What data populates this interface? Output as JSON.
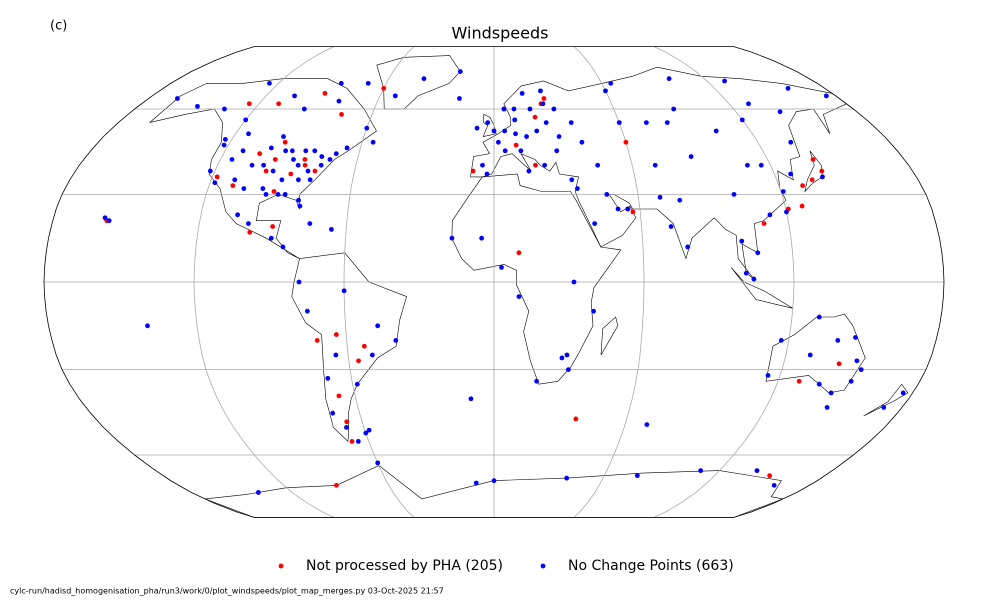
{
  "chart_data": {
    "type": "scatter",
    "panel": "(c)",
    "title": "Windspeeds",
    "footer": "cylc-run/hadisd_homogenisation_pha/run3/work/0/plot_windspeeds/plot_map_merges.py   03-Oct-2025 21:57",
    "series": [
      {
        "name": "Not processed by PHA (205)",
        "color": "#ff0000",
        "lon": [
          -98,
          -87,
          -82,
          -77,
          -92,
          -110,
          -118,
          -96,
          -104,
          -95,
          -83,
          -110,
          -75,
          -125,
          -90,
          -99,
          -90,
          -64,
          -56,
          -67,
          -67,
          -72,
          -53,
          -68,
          24,
          26,
          20,
          10,
          18,
          -9,
          5,
          140,
          141,
          135,
          130,
          127,
          110,
          121,
          55,
          57,
          60,
          10,
          129,
          143,
          37,
          -90,
          150,
          -158,
          -60
        ],
        "lat": [
          38,
          37,
          40,
          38,
          31,
          33,
          36,
          42,
          44,
          48,
          42,
          62,
          58,
          62,
          66,
          17,
          19,
          -18,
          -27,
          -39,
          -48,
          -20,
          -22,
          -55,
          62,
          64,
          57,
          47,
          40,
          38,
          60,
          42,
          38,
          35,
          33,
          26,
          20,
          25,
          25,
          24,
          48,
          10,
          -34,
          -28,
          -47,
          -72,
          -68,
          21,
          68
        ]
      },
      {
        "name": "No Change Points (663)",
        "color": "#0000ff",
        "lon": [
          -100,
          -95,
          -90,
          -85,
          -80,
          -75,
          -88,
          -83,
          -78,
          -97,
          -105,
          -110,
          -118,
          -122,
          -122,
          -112,
          -100,
          -93,
          -87,
          -81,
          -80,
          -90,
          -95,
          -72,
          -70,
          -76,
          -84,
          -90,
          -105,
          -115,
          -114,
          -97,
          -80,
          -66,
          -123,
          -135,
          -150,
          -165,
          -120,
          -95,
          -80,
          -60,
          -105,
          -125,
          -85,
          -70,
          -55,
          -52,
          -40,
          -20,
          -100,
          -105,
          -90,
          -85,
          -66,
          -75,
          -75,
          -60,
          -47,
          -58,
          -70,
          -65,
          -50,
          -68,
          -72,
          -40,
          -78,
          -60,
          -157,
          -159,
          -140,
          -8,
          -3,
          0,
          2,
          5,
          10,
          15,
          20,
          25,
          10,
          12,
          5,
          -5,
          -3,
          15,
          22,
          28,
          30,
          18,
          10,
          25,
          25,
          15,
          5,
          -18,
          30,
          37,
          40,
          45,
          33,
          60,
          73,
          83,
          90,
          104,
          120,
          130,
          142,
          135,
          110,
          116,
          121,
          113,
          120,
          127,
          140,
          100,
          106,
          101,
          104,
          78,
          72,
          77,
          87,
          65,
          100,
          130,
          160,
          175,
          60,
          70,
          51,
          55,
          47,
          35,
          41,
          69,
          100,
          3,
          -5,
          10,
          30,
          28,
          18,
          31,
          32,
          -17,
          40,
          115,
          117,
          131,
          147,
          150,
          151,
          145,
          147,
          138,
          130,
          140,
          153,
          176,
          172,
          -60,
          0,
          40,
          78,
          110,
          140,
          160,
          -10,
          -140,
          -10,
          70,
          -58,
          -65
        ],
        "lat": [
          40,
          38,
          35,
          40,
          38,
          40,
          42,
          35,
          35,
          32,
          40,
          35,
          34,
          38,
          47,
          45,
          46,
          45,
          30,
          28,
          26,
          30,
          30,
          42,
          44,
          43,
          45,
          45,
          32,
          42,
          51,
          50,
          45,
          46,
          49,
          60,
          61,
          64,
          56,
          60,
          63,
          53,
          65,
          70,
          70,
          70,
          48,
          65,
          72,
          75,
          20,
          23,
          15,
          12,
          18,
          20,
          -10,
          -3,
          -15,
          -35,
          -33,
          -25,
          -25,
          -50,
          -45,
          -20,
          0,
          -52,
          21,
          22,
          -15,
          53,
          55,
          52,
          48,
          52,
          51,
          50,
          52,
          55,
          56,
          45,
          45,
          40,
          37,
          38,
          40,
          45,
          50,
          60,
          60,
          62,
          67,
          66,
          60,
          64,
          60,
          55,
          48,
          40,
          35,
          55,
          55,
          55,
          60,
          52,
          56,
          62,
          59,
          48,
          40,
          40,
          31,
          23,
          24,
          37,
          36,
          14,
          10,
          3,
          1,
          12,
          19,
          28,
          43,
          70,
          72,
          71,
          68,
          65,
          67,
          40,
          25,
          25,
          30,
          32,
          20,
          29,
          30,
          5,
          15,
          -5,
          -25,
          -26,
          -34,
          -30,
          0,
          15,
          -10,
          -32,
          -20,
          -12,
          -19,
          -27,
          -34,
          -38,
          -43,
          -35,
          -25,
          -20,
          -30,
          -38,
          -43,
          -63,
          -70,
          -69,
          -68,
          -66,
          -66,
          -72,
          -71,
          -75,
          -40,
          -49,
          -51,
          -55
        ]
      }
    ]
  }
}
